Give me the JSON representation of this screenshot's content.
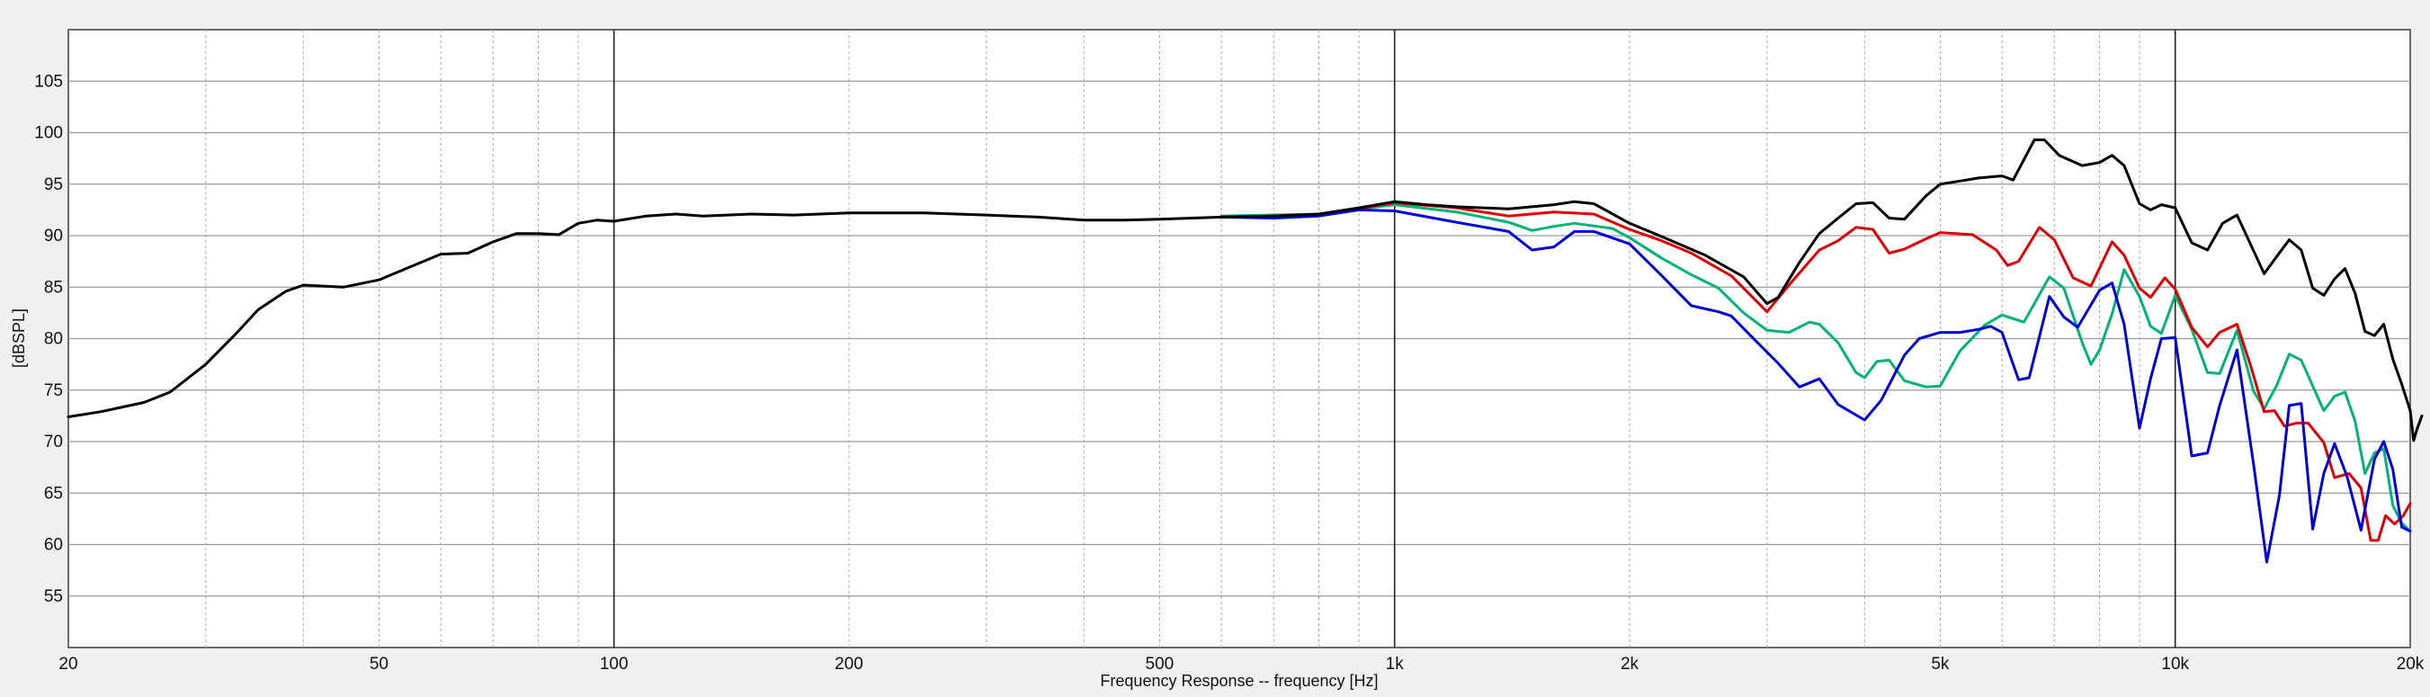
{
  "chart_data": {
    "type": "line",
    "title": "",
    "xlabel": "Frequency Response -- frequency [Hz]",
    "ylabel": "[dBSPL]",
    "x_scale": "log",
    "xlim": [
      20,
      20000
    ],
    "ylim": [
      50,
      110
    ],
    "grid": true,
    "x_ticks": [
      {
        "value": 20,
        "label": "20"
      },
      {
        "value": 50,
        "label": "50"
      },
      {
        "value": 100,
        "label": "100"
      },
      {
        "value": 200,
        "label": "200"
      },
      {
        "value": 500,
        "label": "500"
      },
      {
        "value": 1000,
        "label": "1k"
      },
      {
        "value": 2000,
        "label": "2k"
      },
      {
        "value": 5000,
        "label": "5k"
      },
      {
        "value": 10000,
        "label": "10k"
      },
      {
        "value": 20000,
        "label": "20k"
      }
    ],
    "y_ticks": [
      55,
      60,
      65,
      70,
      75,
      80,
      85,
      90,
      95,
      100,
      105
    ],
    "series": [
      {
        "color": "#00b37a",
        "points": [
          [
            600,
            91.9
          ],
          [
            800,
            92.1
          ],
          [
            1000,
            93.0
          ],
          [
            1200,
            92.3
          ],
          [
            1400,
            91.3
          ],
          [
            1500,
            90.5
          ],
          [
            1600,
            90.9
          ],
          [
            1700,
            91.2
          ],
          [
            1900,
            90.7
          ],
          [
            2000,
            89.8
          ],
          [
            2200,
            87.8
          ],
          [
            2400,
            86.2
          ],
          [
            2600,
            84.9
          ],
          [
            2800,
            82.5
          ],
          [
            3000,
            80.8
          ],
          [
            3200,
            80.6
          ],
          [
            3400,
            81.6
          ],
          [
            3500,
            81.4
          ],
          [
            3700,
            79.6
          ],
          [
            3900,
            76.7
          ],
          [
            4000,
            76.2
          ],
          [
            4150,
            77.8
          ],
          [
            4300,
            77.9
          ],
          [
            4500,
            75.9
          ],
          [
            4800,
            75.3
          ],
          [
            5000,
            75.4
          ],
          [
            5300,
            78.8
          ],
          [
            5700,
            81.3
          ],
          [
            6000,
            82.3
          ],
          [
            6400,
            81.6
          ],
          [
            6900,
            86.0
          ],
          [
            7200,
            84.9
          ],
          [
            7600,
            79.6
          ],
          [
            7800,
            77.5
          ],
          [
            8000,
            78.9
          ],
          [
            8300,
            82.4
          ],
          [
            8600,
            86.7
          ],
          [
            9000,
            84.1
          ],
          [
            9300,
            81.2
          ],
          [
            9600,
            80.5
          ],
          [
            10000,
            84.2
          ],
          [
            10500,
            80.9
          ],
          [
            11000,
            76.7
          ],
          [
            11400,
            76.6
          ],
          [
            12000,
            80.8
          ],
          [
            12600,
            74.9
          ],
          [
            13000,
            73.2
          ],
          [
            13500,
            75.5
          ],
          [
            14000,
            78.5
          ],
          [
            14500,
            77.9
          ],
          [
            15000,
            75.4
          ],
          [
            15500,
            73.0
          ],
          [
            16000,
            74.4
          ],
          [
            16500,
            74.8
          ],
          [
            17000,
            72.0
          ],
          [
            17500,
            66.9
          ],
          [
            18000,
            68.9
          ],
          [
            18500,
            69.3
          ],
          [
            19000,
            63.8
          ],
          [
            19500,
            62.1
          ],
          [
            20000,
            61.3
          ]
        ]
      },
      {
        "color": "#e00000",
        "points": [
          [
            600,
            91.8
          ],
          [
            800,
            92.0
          ],
          [
            1000,
            93.2
          ],
          [
            1200,
            92.7
          ],
          [
            1400,
            91.9
          ],
          [
            1600,
            92.3
          ],
          [
            1800,
            92.1
          ],
          [
            2000,
            90.6
          ],
          [
            2200,
            89.5
          ],
          [
            2400,
            88.3
          ],
          [
            2700,
            86.1
          ],
          [
            3000,
            82.6
          ],
          [
            3200,
            85.2
          ],
          [
            3500,
            88.6
          ],
          [
            3700,
            89.5
          ],
          [
            3900,
            90.8
          ],
          [
            4100,
            90.6
          ],
          [
            4300,
            88.3
          ],
          [
            4500,
            88.7
          ],
          [
            4800,
            89.7
          ],
          [
            5000,
            90.3
          ],
          [
            5500,
            90.1
          ],
          [
            5900,
            88.6
          ],
          [
            6100,
            87.1
          ],
          [
            6300,
            87.5
          ],
          [
            6700,
            90.8
          ],
          [
            7000,
            89.6
          ],
          [
            7400,
            85.9
          ],
          [
            7800,
            85.1
          ],
          [
            8300,
            89.4
          ],
          [
            8600,
            88.1
          ],
          [
            9000,
            84.9
          ],
          [
            9300,
            84.0
          ],
          [
            9700,
            85.9
          ],
          [
            10000,
            84.8
          ],
          [
            10500,
            81.1
          ],
          [
            11000,
            79.2
          ],
          [
            11400,
            80.6
          ],
          [
            12000,
            81.4
          ],
          [
            12500,
            77.3
          ],
          [
            13000,
            72.9
          ],
          [
            13400,
            73.0
          ],
          [
            13800,
            71.5
          ],
          [
            14300,
            71.8
          ],
          [
            14800,
            71.8
          ],
          [
            15500,
            69.9
          ],
          [
            16000,
            66.5
          ],
          [
            16700,
            66.9
          ],
          [
            17300,
            65.5
          ],
          [
            17800,
            60.4
          ],
          [
            18200,
            60.4
          ],
          [
            18600,
            62.8
          ],
          [
            19100,
            62.0
          ],
          [
            19600,
            62.8
          ],
          [
            20000,
            64.0
          ]
        ]
      },
      {
        "color": "#0000d8",
        "points": [
          [
            600,
            91.8
          ],
          [
            700,
            91.7
          ],
          [
            800,
            91.9
          ],
          [
            900,
            92.5
          ],
          [
            1000,
            92.4
          ],
          [
            1200,
            91.3
          ],
          [
            1400,
            90.4
          ],
          [
            1500,
            88.6
          ],
          [
            1600,
            88.9
          ],
          [
            1700,
            90.4
          ],
          [
            1800,
            90.4
          ],
          [
            2000,
            89.2
          ],
          [
            2200,
            86.1
          ],
          [
            2400,
            83.2
          ],
          [
            2600,
            82.6
          ],
          [
            2700,
            82.2
          ],
          [
            2900,
            79.8
          ],
          [
            3100,
            77.6
          ],
          [
            3300,
            75.3
          ],
          [
            3500,
            76.1
          ],
          [
            3700,
            73.6
          ],
          [
            4000,
            72.1
          ],
          [
            4200,
            74.0
          ],
          [
            4500,
            78.4
          ],
          [
            4700,
            80.0
          ],
          [
            5000,
            80.6
          ],
          [
            5300,
            80.6
          ],
          [
            5600,
            80.9
          ],
          [
            5800,
            81.2
          ],
          [
            6000,
            80.6
          ],
          [
            6300,
            76.0
          ],
          [
            6500,
            76.2
          ],
          [
            6900,
            84.1
          ],
          [
            7200,
            82.1
          ],
          [
            7500,
            81.1
          ],
          [
            8000,
            84.7
          ],
          [
            8300,
            85.4
          ],
          [
            8600,
            81.4
          ],
          [
            9000,
            71.3
          ],
          [
            9300,
            76.1
          ],
          [
            9600,
            80.0
          ],
          [
            10000,
            80.1
          ],
          [
            10500,
            68.6
          ],
          [
            11000,
            68.9
          ],
          [
            11400,
            73.5
          ],
          [
            12000,
            78.9
          ],
          [
            12600,
            67.8
          ],
          [
            13100,
            58.3
          ],
          [
            13600,
            64.8
          ],
          [
            14000,
            73.5
          ],
          [
            14500,
            73.7
          ],
          [
            15000,
            61.5
          ],
          [
            15500,
            66.9
          ],
          [
            16000,
            69.8
          ],
          [
            16600,
            66.6
          ],
          [
            17300,
            61.4
          ],
          [
            18000,
            68.3
          ],
          [
            18500,
            70.0
          ],
          [
            19000,
            67.3
          ],
          [
            19500,
            61.7
          ],
          [
            20000,
            61.3
          ]
        ]
      },
      {
        "color": "#000000",
        "points": [
          [
            20,
            72.4
          ],
          [
            22,
            72.9
          ],
          [
            25,
            73.8
          ],
          [
            27,
            74.8
          ],
          [
            30,
            77.5
          ],
          [
            33,
            80.7
          ],
          [
            35,
            82.8
          ],
          [
            38,
            84.6
          ],
          [
            40,
            85.2
          ],
          [
            45,
            85.0
          ],
          [
            50,
            85.7
          ],
          [
            55,
            87.0
          ],
          [
            60,
            88.2
          ],
          [
            65,
            88.3
          ],
          [
            70,
            89.4
          ],
          [
            75,
            90.2
          ],
          [
            80,
            90.2
          ],
          [
            85,
            90.1
          ],
          [
            90,
            91.2
          ],
          [
            95,
            91.5
          ],
          [
            100,
            91.4
          ],
          [
            110,
            91.9
          ],
          [
            120,
            92.1
          ],
          [
            130,
            91.9
          ],
          [
            150,
            92.1
          ],
          [
            170,
            92.0
          ],
          [
            200,
            92.2
          ],
          [
            250,
            92.2
          ],
          [
            300,
            92.0
          ],
          [
            350,
            91.8
          ],
          [
            400,
            91.5
          ],
          [
            450,
            91.5
          ],
          [
            500,
            91.6
          ],
          [
            600,
            91.8
          ],
          [
            700,
            91.9
          ],
          [
            800,
            92.1
          ],
          [
            900,
            92.7
          ],
          [
            1000,
            93.3
          ],
          [
            1100,
            93.0
          ],
          [
            1200,
            92.8
          ],
          [
            1400,
            92.6
          ],
          [
            1600,
            93.0
          ],
          [
            1700,
            93.3
          ],
          [
            1800,
            93.1
          ],
          [
            2000,
            91.2
          ],
          [
            2200,
            89.9
          ],
          [
            2500,
            88.1
          ],
          [
            2800,
            86.0
          ],
          [
            3000,
            83.4
          ],
          [
            3100,
            84.0
          ],
          [
            3300,
            87.4
          ],
          [
            3500,
            90.2
          ],
          [
            3700,
            91.7
          ],
          [
            3900,
            93.1
          ],
          [
            4100,
            93.2
          ],
          [
            4300,
            91.7
          ],
          [
            4500,
            91.6
          ],
          [
            4800,
            93.9
          ],
          [
            5000,
            95.0
          ],
          [
            5300,
            95.3
          ],
          [
            5600,
            95.6
          ],
          [
            6000,
            95.8
          ],
          [
            6200,
            95.4
          ],
          [
            6600,
            99.3
          ],
          [
            6800,
            99.3
          ],
          [
            7100,
            97.8
          ],
          [
            7600,
            96.8
          ],
          [
            8000,
            97.1
          ],
          [
            8300,
            97.8
          ],
          [
            8600,
            96.8
          ],
          [
            9000,
            93.1
          ],
          [
            9300,
            92.5
          ],
          [
            9600,
            93.0
          ],
          [
            10000,
            92.7
          ],
          [
            10500,
            89.3
          ],
          [
            11000,
            88.6
          ],
          [
            11500,
            91.2
          ],
          [
            12000,
            92.0
          ],
          [
            12500,
            89.1
          ],
          [
            13000,
            86.3
          ],
          [
            13500,
            88.0
          ],
          [
            14000,
            89.6
          ],
          [
            14500,
            88.6
          ],
          [
            15000,
            84.9
          ],
          [
            15500,
            84.2
          ],
          [
            16000,
            85.8
          ],
          [
            16500,
            86.8
          ],
          [
            17000,
            84.4
          ],
          [
            17500,
            80.7
          ],
          [
            18000,
            80.3
          ],
          [
            18500,
            81.4
          ],
          [
            19000,
            78.0
          ],
          [
            19500,
            75.6
          ],
          [
            20000,
            73.0
          ]
        ]
      },
      {
        "color": "#000000",
        "points": [
          [
            20000,
            73.0
          ],
          [
            20200,
            70.1
          ],
          [
            20400,
            71.2
          ],
          [
            20700,
            72.5
          ]
        ]
      }
    ]
  }
}
